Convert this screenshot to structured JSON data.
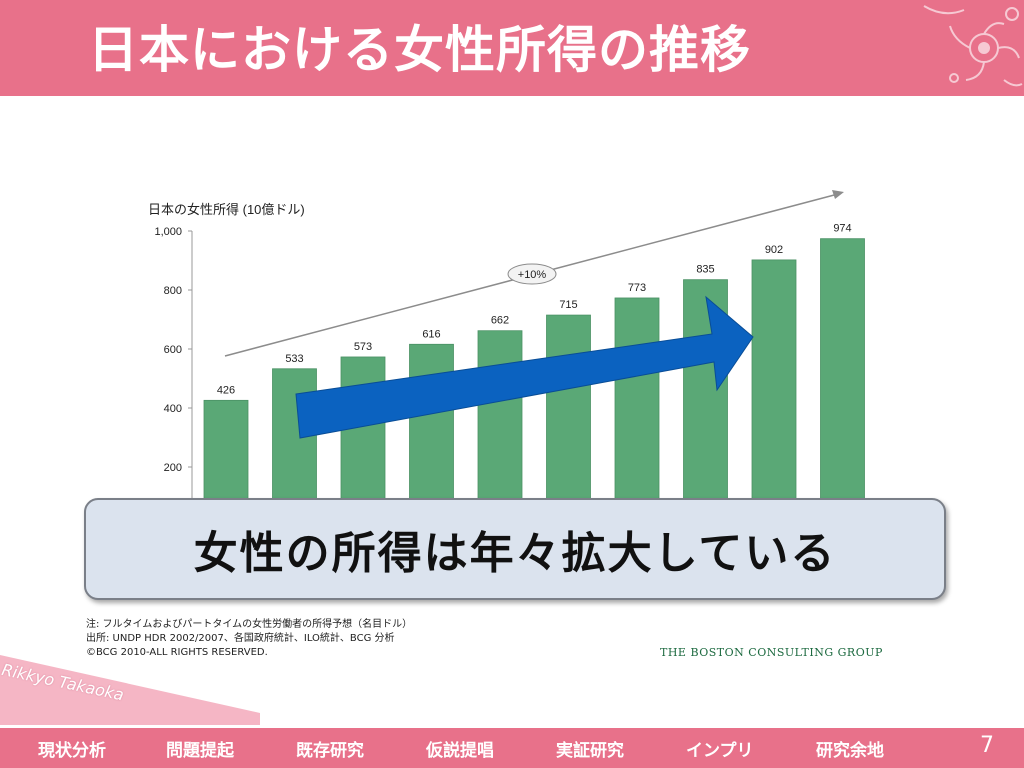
{
  "header": {
    "title": "日本における女性所得の推移"
  },
  "chart_data": {
    "type": "bar",
    "title": "日本の女性所得 (10億ドル)",
    "categories": [
      "",
      "",
      "",
      "",
      "",
      "",
      "",
      "",
      "",
      ""
    ],
    "values": [
      426,
      533,
      573,
      616,
      662,
      715,
      773,
      835,
      902,
      974
    ],
    "ylim": [
      0,
      1000
    ],
    "yticks": [
      "200",
      "400",
      "600",
      "800",
      "1,000"
    ],
    "trend_label": "+10%",
    "bar_color": "#5aa876",
    "arrow_color": "#0b62c0"
  },
  "callout": {
    "text": "女性の所得は年々拡大している"
  },
  "notes": {
    "line1": "注: フルタイムおよびパートタイムの女性労働者の所得予想（名目ドル）",
    "line2": "出所:  UNDP HDR 2002/2007、各国政府統計、ILO統計、BCG 分析",
    "line3": "©BCG 2010-ALL RIGHTS RESERVED."
  },
  "brand": "THE BOSTON CONSULTING GROUP",
  "watermark": "Rikkyo Takaoka",
  "nav": {
    "items": [
      "現状分析",
      "問題提起",
      "既存研究",
      "仮説提唱",
      "実証研究",
      "インプリ",
      "研究余地"
    ],
    "page": "7"
  },
  "colors": {
    "accent": "#e8718a"
  }
}
